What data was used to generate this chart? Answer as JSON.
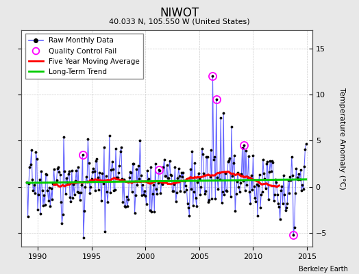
{
  "title": "NIWOT",
  "subtitle": "40.033 N, 105.550 W (United States)",
  "ylabel": "Temperature Anomaly (°C)",
  "credit": "Berkeley Earth",
  "xlim": [
    1988.5,
    2015.5
  ],
  "ylim": [
    -6.5,
    17
  ],
  "yticks": [
    -5,
    0,
    5,
    10,
    15
  ],
  "xticks": [
    1990,
    1995,
    2000,
    2005,
    2010,
    2015
  ],
  "bg_color": "#e8e8e8",
  "plot_bg_color": "#ffffff",
  "raw_color": "#6666ff",
  "ma_color": "#ff0000",
  "trend_color": "#00cc00",
  "qc_color": "#ff00ff",
  "start_year": 1989,
  "n_months": 312
}
